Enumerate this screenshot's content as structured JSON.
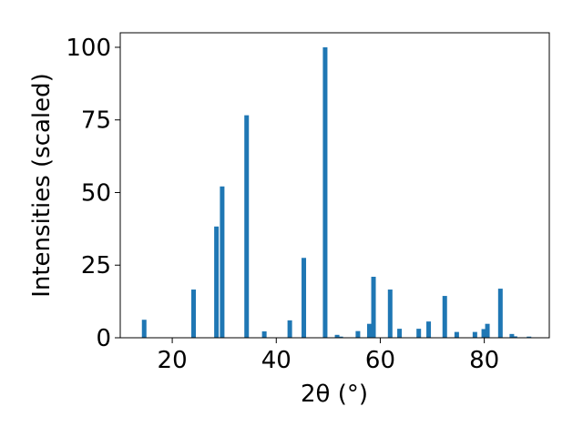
{
  "chart_data": {
    "type": "bar",
    "title": "",
    "xlabel": "2θ (°)",
    "ylabel": "Intensities (scaled)",
    "xlim": [
      10,
      92.5
    ],
    "ylim": [
      0,
      105
    ],
    "xticks": [
      20,
      40,
      60,
      80
    ],
    "yticks": [
      0,
      25,
      50,
      75,
      100
    ],
    "grid": false,
    "bar_color": "#1f77b4",
    "x": [
      14.6,
      24.1,
      28.5,
      29.6,
      34.3,
      37.7,
      42.6,
      45.3,
      49.4,
      51.7,
      52.4,
      55.7,
      57.9,
      58.7,
      61.9,
      63.7,
      67.4,
      69.3,
      72.4,
      74.7,
      78.2,
      79.9,
      80.6,
      83.1,
      85.3,
      85.9,
      88.6
    ],
    "values": [
      6.2,
      16.6,
      38.3,
      52.1,
      76.6,
      2.2,
      6.0,
      27.5,
      100.0,
      1.0,
      0.4,
      2.3,
      4.8,
      21.0,
      16.6,
      3.1,
      3.1,
      5.6,
      14.4,
      2.0,
      2.0,
      3.0,
      4.8,
      16.9,
      1.3,
      0.5,
      0.4
    ]
  }
}
